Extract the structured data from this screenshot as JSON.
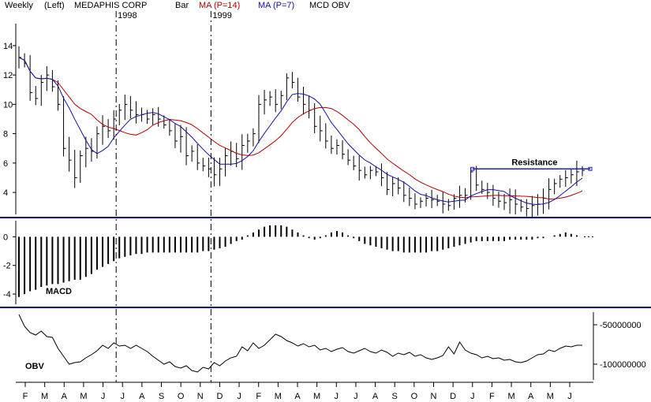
{
  "header": {
    "period": "Weekly",
    "axis_side": "(Left)",
    "symbol": "MEDAPHIS CORP",
    "style": "Bar",
    "ma_slow": "MA (P=14)",
    "ma_fast": "MA (P=7)",
    "indicators": "MCD OBV"
  },
  "colors": {
    "price_bar": "#000000",
    "ma_slow": "#b00000",
    "ma_fast": "#1010a0",
    "resistance": "#2020c0",
    "separator": "#0000a0"
  },
  "chart_data": [
    {
      "type": "line",
      "panel": "price",
      "y_ticks": [
        14,
        12,
        10,
        8,
        6,
        4
      ],
      "ylim": [
        2.5,
        15.5
      ],
      "year_marks": [
        {
          "index": 17,
          "label": "1998"
        },
        {
          "index": 34,
          "label": "1999"
        }
      ],
      "x_months": [
        "F",
        "M",
        "A",
        "M",
        "J",
        "J",
        "A",
        "S",
        "O",
        "N",
        "D",
        "J",
        "F",
        "M",
        "A",
        "M",
        "J",
        "J",
        "A",
        "S",
        "O",
        "N",
        "D",
        "J",
        "F",
        "M",
        "A",
        "M",
        "J"
      ],
      "annotation": {
        "text": "Resistance",
        "value": 5.6,
        "from_month_index": 23,
        "to_month_index": 28
      },
      "weekly_close": [
        13.2,
        12.8,
        10.8,
        10.4,
        11.5,
        12.0,
        11.2,
        10.0,
        7.0,
        6.2,
        5.0,
        6.5,
        7.0,
        6.8,
        8.0,
        8.5,
        8.2,
        9.0,
        9.6,
        10.0,
        9.6,
        9.3,
        9.3,
        9.0,
        9.3,
        9.0,
        8.6,
        8.2,
        7.5,
        7.8,
        6.5,
        6.8,
        6.0,
        5.8,
        5.6,
        5.2,
        5.6,
        6.5,
        6.8,
        6.3,
        7.2,
        7.5,
        8.0,
        10.0,
        10.3,
        10.5,
        10.0,
        10.6,
        11.8,
        11.5,
        10.5,
        10.0,
        9.6,
        8.5,
        8.2,
        7.5,
        7.0,
        7.2,
        6.6,
        6.2,
        5.8,
        5.5,
        5.2,
        5.5,
        5.4,
        5.0,
        4.2,
        4.6,
        4.3,
        3.8,
        3.6,
        3.2,
        3.4,
        3.6,
        3.5,
        3.4,
        3.2,
        3.1,
        3.6,
        3.8,
        3.8,
        5.4,
        4.5,
        4.2,
        4.0,
        3.6,
        3.4,
        3.3,
        3.5,
        3.2,
        3.0,
        2.9,
        3.1,
        3.2,
        3.6,
        4.2,
        4.6,
        4.9,
        5.0,
        5.2,
        5.4,
        5.5
      ]
    },
    {
      "type": "bar",
      "panel": "macd",
      "title": "MACD",
      "y_ticks": [
        0,
        -2,
        -4
      ],
      "ylim": [
        -4.6,
        0.9
      ],
      "values": [
        -4.2,
        -4.0,
        -3.8,
        -3.7,
        -3.5,
        -3.4,
        -3.3,
        -3.3,
        -3.2,
        -3.1,
        -3.0,
        -3.0,
        -2.8,
        -2.6,
        -2.3,
        -2.1,
        -1.9,
        -1.7,
        -1.5,
        -1.4,
        -1.3,
        -1.2,
        -1.2,
        -1.1,
        -1.1,
        -1.1,
        -1.1,
        -1.1,
        -1.1,
        -1.1,
        -1.1,
        -1.1,
        -1.1,
        -1.0,
        -1.0,
        -0.9,
        -0.8,
        -0.7,
        -0.5,
        -0.3,
        -0.2,
        0.1,
        0.3,
        0.5,
        0.7,
        0.8,
        0.8,
        0.8,
        0.7,
        0.5,
        0.3,
        0.1,
        -0.1,
        -0.2,
        -0.1,
        0.1,
        0.3,
        0.4,
        0.3,
        0.1,
        -0.1,
        -0.3,
        -0.5,
        -0.6,
        -0.7,
        -0.8,
        -0.9,
        -1.0,
        -1.0,
        -1.1,
        -1.1,
        -1.1,
        -1.1,
        -1.1,
        -1.0,
        -1.0,
        -0.9,
        -0.8,
        -0.7,
        -0.6,
        -0.5,
        -0.4,
        -0.3,
        -0.3,
        -0.3,
        -0.3,
        -0.3,
        -0.3,
        -0.2,
        -0.2,
        -0.2,
        -0.2,
        -0.2,
        -0.1,
        -0.1,
        0.0,
        0.1,
        0.2,
        0.3,
        0.2,
        0.1,
        0.0
      ]
    },
    {
      "type": "line",
      "panel": "obv",
      "title": "OBV",
      "y_ticks": [
        -50000000,
        -100000000
      ],
      "y_tick_labels": [
        "-50000000",
        "-100000000"
      ],
      "ylim": [
        -120000000,
        -34000000
      ],
      "values": [
        -37000000,
        -52000000,
        -60000000,
        -63000000,
        -58000000,
        -65000000,
        -66000000,
        -80000000,
        -90000000,
        -100000000,
        -98000000,
        -97000000,
        -92000000,
        -88000000,
        -83000000,
        -76000000,
        -80000000,
        -73000000,
        -77000000,
        -76000000,
        -80000000,
        -76000000,
        -80000000,
        -84000000,
        -90000000,
        -95000000,
        -100000000,
        -97000000,
        -103000000,
        -105000000,
        -102000000,
        -108000000,
        -110000000,
        -104000000,
        -106000000,
        -98000000,
        -102000000,
        -96000000,
        -92000000,
        -90000000,
        -78000000,
        -83000000,
        -73000000,
        -80000000,
        -76000000,
        -69000000,
        -62000000,
        -65000000,
        -70000000,
        -73000000,
        -77000000,
        -74000000,
        -78000000,
        -76000000,
        -82000000,
        -80000000,
        -84000000,
        -81000000,
        -79000000,
        -84000000,
        -86000000,
        -83000000,
        -80000000,
        -84000000,
        -86000000,
        -82000000,
        -85000000,
        -90000000,
        -86000000,
        -88000000,
        -85000000,
        -90000000,
        -88000000,
        -92000000,
        -94000000,
        -92000000,
        -89000000,
        -78000000,
        -87000000,
        -72000000,
        -82000000,
        -86000000,
        -88000000,
        -92000000,
        -90000000,
        -93000000,
        -92000000,
        -95000000,
        -94000000,
        -97000000,
        -98000000,
        -96000000,
        -92000000,
        -88000000,
        -87000000,
        -82000000,
        -84000000,
        -80000000,
        -77000000,
        -78000000,
        -76000000,
        -76000000
      ]
    }
  ]
}
